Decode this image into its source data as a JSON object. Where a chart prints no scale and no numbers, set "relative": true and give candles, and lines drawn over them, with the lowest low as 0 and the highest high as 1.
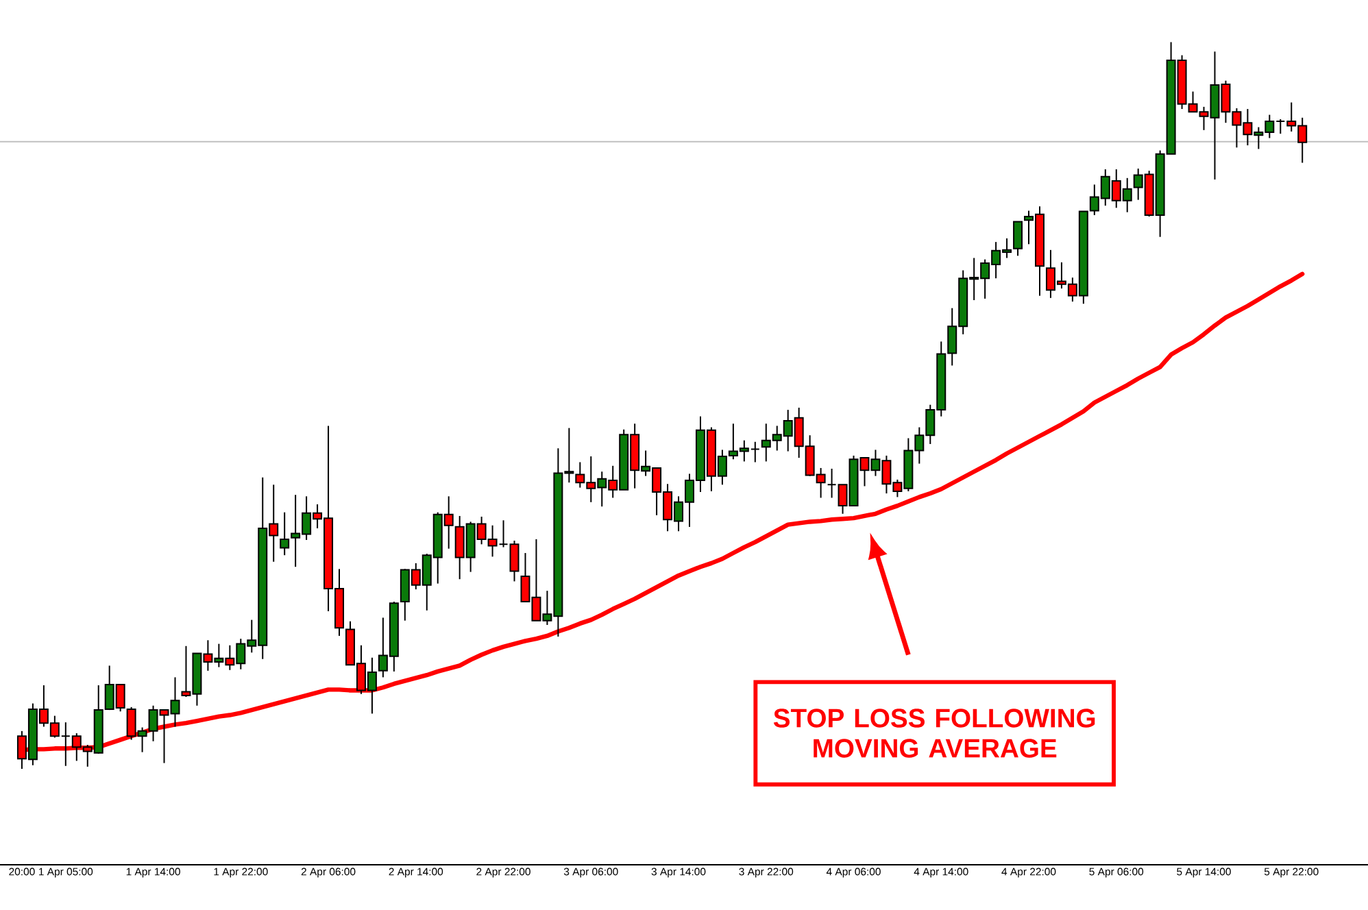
{
  "chart_data": {
    "type": "candlestick",
    "relative": true,
    "categories": [
      "20:00",
      null,
      null,
      null,
      "1 Apr 05:00",
      null,
      null,
      null,
      null,
      null,
      null,
      null,
      "1 Apr 14:00",
      null,
      null,
      null,
      null,
      null,
      null,
      null,
      "1 Apr 22:00",
      null,
      null,
      null,
      null,
      null,
      null,
      null,
      "2 Apr 06:00",
      null,
      null,
      null,
      null,
      null,
      null,
      null,
      "2 Apr 14:00",
      null,
      null,
      null,
      null,
      null,
      null,
      null,
      "2 Apr 22:00",
      null,
      null,
      null,
      null,
      null,
      null,
      null,
      "3 Apr 06:00",
      null,
      null,
      null,
      null,
      null,
      null,
      null,
      "3 Apr 14:00",
      null,
      null,
      null,
      null,
      null,
      null,
      null,
      "3 Apr 22:00",
      null,
      null,
      null,
      null,
      null,
      null,
      null,
      "4 Apr 06:00",
      null,
      null,
      null,
      null,
      null,
      null,
      null,
      "4 Apr 14:00",
      null,
      null,
      null,
      null,
      null,
      null,
      null,
      "4 Apr 22:00",
      null,
      null,
      null,
      null,
      null,
      null,
      null,
      "5 Apr 06:00",
      null,
      null,
      null,
      null,
      null,
      null,
      null,
      "5 Apr 14:00",
      null,
      null,
      null,
      null,
      null,
      null,
      null,
      "5 Apr 22:00",
      null
    ],
    "ohlc": [
      [
        0.045,
        0.052,
        0.0,
        0.014
      ],
      [
        0.013,
        0.09,
        0.005,
        0.082
      ],
      [
        0.082,
        0.115,
        0.058,
        0.063
      ],
      [
        0.063,
        0.073,
        0.043,
        0.045
      ],
      [
        0.045,
        0.064,
        0.004,
        0.045
      ],
      [
        0.045,
        0.049,
        0.011,
        0.03
      ],
      [
        0.03,
        0.033,
        0.003,
        0.024
      ],
      [
        0.022,
        0.115,
        0.021,
        0.081
      ],
      [
        0.082,
        0.142,
        0.081,
        0.116
      ],
      [
        0.116,
        0.116,
        0.079,
        0.084
      ],
      [
        0.082,
        0.085,
        0.04,
        0.045
      ],
      [
        0.045,
        0.057,
        0.023,
        0.052
      ],
      [
        0.052,
        0.087,
        0.038,
        0.081
      ],
      [
        0.081,
        0.082,
        0.008,
        0.074
      ],
      [
        0.076,
        0.126,
        0.058,
        0.094
      ],
      [
        0.106,
        0.169,
        0.099,
        0.101
      ],
      [
        0.103,
        0.159,
        0.087,
        0.159
      ],
      [
        0.158,
        0.177,
        0.135,
        0.147
      ],
      [
        0.147,
        0.172,
        0.14,
        0.152
      ],
      [
        0.152,
        0.17,
        0.136,
        0.143
      ],
      [
        0.145,
        0.179,
        0.137,
        0.172
      ],
      [
        0.169,
        0.205,
        0.16,
        0.177
      ],
      [
        0.17,
        0.401,
        0.151,
        0.331
      ],
      [
        0.337,
        0.391,
        0.285,
        0.321
      ],
      [
        0.304,
        0.353,
        0.294,
        0.316
      ],
      [
        0.318,
        0.377,
        0.278,
        0.324
      ],
      [
        0.323,
        0.375,
        0.315,
        0.352
      ],
      [
        0.352,
        0.364,
        0.331,
        0.344
      ],
      [
        0.345,
        0.472,
        0.217,
        0.248
      ],
      [
        0.248,
        0.275,
        0.183,
        0.194
      ],
      [
        0.192,
        0.203,
        0.143,
        0.143
      ],
      [
        0.145,
        0.17,
        0.103,
        0.108
      ],
      [
        0.108,
        0.153,
        0.076,
        0.133
      ],
      [
        0.135,
        0.208,
        0.126,
        0.156
      ],
      [
        0.155,
        0.23,
        0.134,
        0.228
      ],
      [
        0.23,
        0.275,
        0.204,
        0.274
      ],
      [
        0.274,
        0.283,
        0.247,
        0.253
      ],
      [
        0.253,
        0.296,
        0.218,
        0.294
      ],
      [
        0.291,
        0.353,
        0.255,
        0.35
      ],
      [
        0.35,
        0.375,
        0.303,
        0.335
      ],
      [
        0.333,
        0.348,
        0.261,
        0.291
      ],
      [
        0.291,
        0.34,
        0.271,
        0.337
      ],
      [
        0.337,
        0.347,
        0.309,
        0.316
      ],
      [
        0.316,
        0.335,
        0.292,
        0.307
      ],
      [
        0.309,
        0.342,
        0.305,
        0.309
      ],
      [
        0.309,
        0.314,
        0.258,
        0.272
      ],
      [
        0.265,
        0.297,
        0.23,
        0.23
      ],
      [
        0.236,
        0.316,
        0.204,
        0.204
      ],
      [
        0.204,
        0.245,
        0.198,
        0.213
      ],
      [
        0.21,
        0.441,
        0.182,
        0.407
      ],
      [
        0.407,
        0.469,
        0.394,
        0.409
      ],
      [
        0.405,
        0.422,
        0.387,
        0.394
      ],
      [
        0.394,
        0.43,
        0.367,
        0.386
      ],
      [
        0.387,
        0.409,
        0.361,
        0.399
      ],
      [
        0.397,
        0.417,
        0.373,
        0.384
      ],
      [
        0.384,
        0.467,
        0.384,
        0.46
      ],
      [
        0.46,
        0.475,
        0.386,
        0.411
      ],
      [
        0.41,
        0.438,
        0.403,
        0.416
      ],
      [
        0.414,
        0.414,
        0.349,
        0.381
      ],
      [
        0.381,
        0.392,
        0.327,
        0.343
      ],
      [
        0.341,
        0.375,
        0.327,
        0.367
      ],
      [
        0.367,
        0.406,
        0.333,
        0.397
      ],
      [
        0.397,
        0.485,
        0.381,
        0.466
      ],
      [
        0.466,
        0.47,
        0.382,
        0.403
      ],
      [
        0.403,
        0.439,
        0.391,
        0.43
      ],
      [
        0.431,
        0.475,
        0.426,
        0.437
      ],
      [
        0.437,
        0.452,
        0.423,
        0.441
      ],
      [
        0.44,
        0.45,
        0.422,
        0.44
      ],
      [
        0.443,
        0.475,
        0.423,
        0.452
      ],
      [
        0.452,
        0.472,
        0.438,
        0.46
      ],
      [
        0.458,
        0.494,
        0.437,
        0.479
      ],
      [
        0.483,
        0.497,
        0.428,
        0.444
      ],
      [
        0.444,
        0.459,
        0.403,
        0.404
      ],
      [
        0.405,
        0.414,
        0.373,
        0.394
      ],
      [
        0.391,
        0.413,
        0.373,
        0.391
      ],
      [
        0.391,
        0.391,
        0.351,
        0.362
      ],
      [
        0.362,
        0.431,
        0.362,
        0.426
      ],
      [
        0.428,
        0.428,
        0.389,
        0.411
      ],
      [
        0.411,
        0.439,
        0.403,
        0.426
      ],
      [
        0.424,
        0.431,
        0.379,
        0.392
      ],
      [
        0.394,
        0.398,
        0.374,
        0.382
      ],
      [
        0.386,
        0.455,
        0.382,
        0.438
      ],
      [
        0.438,
        0.47,
        0.42,
        0.459
      ],
      [
        0.459,
        0.501,
        0.447,
        0.494
      ],
      [
        0.494,
        0.588,
        0.485,
        0.571
      ],
      [
        0.572,
        0.634,
        0.555,
        0.609
      ],
      [
        0.609,
        0.686,
        0.598,
        0.675
      ],
      [
        0.674,
        0.703,
        0.645,
        0.676
      ],
      [
        0.675,
        0.701,
        0.647,
        0.696
      ],
      [
        0.694,
        0.725,
        0.675,
        0.713
      ],
      [
        0.711,
        0.73,
        0.703,
        0.714
      ],
      [
        0.716,
        0.753,
        0.706,
        0.753
      ],
      [
        0.755,
        0.768,
        0.722,
        0.76
      ],
      [
        0.763,
        0.774,
        0.651,
        0.692
      ],
      [
        0.689,
        0.714,
        0.648,
        0.659
      ],
      [
        0.671,
        0.697,
        0.661,
        0.667
      ],
      [
        0.667,
        0.676,
        0.643,
        0.651
      ],
      [
        0.651,
        0.767,
        0.64,
        0.767
      ],
      [
        0.768,
        0.804,
        0.762,
        0.787
      ],
      [
        0.785,
        0.825,
        0.775,
        0.815
      ],
      [
        0.809,
        0.825,
        0.772,
        0.782
      ],
      [
        0.782,
        0.813,
        0.766,
        0.798
      ],
      [
        0.8,
        0.826,
        0.783,
        0.817
      ],
      [
        0.818,
        0.823,
        0.76,
        0.762
      ],
      [
        0.762,
        0.851,
        0.732,
        0.846
      ],
      [
        0.846,
        1.0,
        0.846,
        0.975
      ],
      [
        0.975,
        0.982,
        0.908,
        0.915
      ],
      [
        0.915,
        0.932,
        0.904,
        0.904
      ],
      [
        0.904,
        0.911,
        0.879,
        0.898
      ],
      [
        0.896,
        0.987,
        0.811,
        0.941
      ],
      [
        0.942,
        0.947,
        0.889,
        0.904
      ],
      [
        0.904,
        0.909,
        0.855,
        0.886
      ],
      [
        0.889,
        0.908,
        0.858,
        0.873
      ],
      [
        0.872,
        0.883,
        0.853,
        0.876
      ],
      [
        0.876,
        0.9,
        0.868,
        0.891
      ],
      [
        0.891,
        0.894,
        0.874,
        0.891
      ],
      [
        0.891,
        0.917,
        0.877,
        0.885
      ],
      [
        0.885,
        0.896,
        0.834,
        0.862
      ]
    ],
    "series": [
      {
        "type": "line",
        "color": "#ff0000",
        "values": [
          0.026,
          0.027,
          0.027,
          0.028,
          0.028,
          0.029,
          0.029,
          0.03,
          0.035,
          0.04,
          0.045,
          0.05,
          0.055,
          0.058,
          0.061,
          0.063,
          0.066,
          0.069,
          0.072,
          0.074,
          0.077,
          0.081,
          0.085,
          0.089,
          0.093,
          0.097,
          0.101,
          0.105,
          0.109,
          0.109,
          0.108,
          0.108,
          0.108,
          0.112,
          0.117,
          0.121,
          0.125,
          0.129,
          0.134,
          0.138,
          0.142,
          0.15,
          0.157,
          0.163,
          0.168,
          0.172,
          0.176,
          0.179,
          0.183,
          0.189,
          0.194,
          0.2,
          0.205,
          0.212,
          0.22,
          0.227,
          0.234,
          0.242,
          0.25,
          0.258,
          0.266,
          0.272,
          0.278,
          0.283,
          0.289,
          0.297,
          0.305,
          0.312,
          0.32,
          0.328,
          0.336,
          0.338,
          0.34,
          0.341,
          0.343,
          0.344,
          0.345,
          0.348,
          0.351,
          0.357,
          0.362,
          0.368,
          0.374,
          0.379,
          0.385,
          0.393,
          0.401,
          0.409,
          0.417,
          0.425,
          0.434,
          0.442,
          0.45,
          0.458,
          0.466,
          0.474,
          0.483,
          0.492,
          0.504,
          0.512,
          0.52,
          0.528,
          0.537,
          0.545,
          0.553,
          0.57,
          0.579,
          0.587,
          0.598,
          0.61,
          0.621,
          0.629,
          0.637,
          0.646,
          0.655,
          0.664,
          0.672,
          0.681
        ]
      }
    ],
    "ref_lines": [
      {
        "axis": "y",
        "value": 0.863,
        "color": "#c0c0c0"
      }
    ],
    "annotations": [
      "STOP LOSS FOLLOWING MOVING AVERAGE"
    ]
  }
}
